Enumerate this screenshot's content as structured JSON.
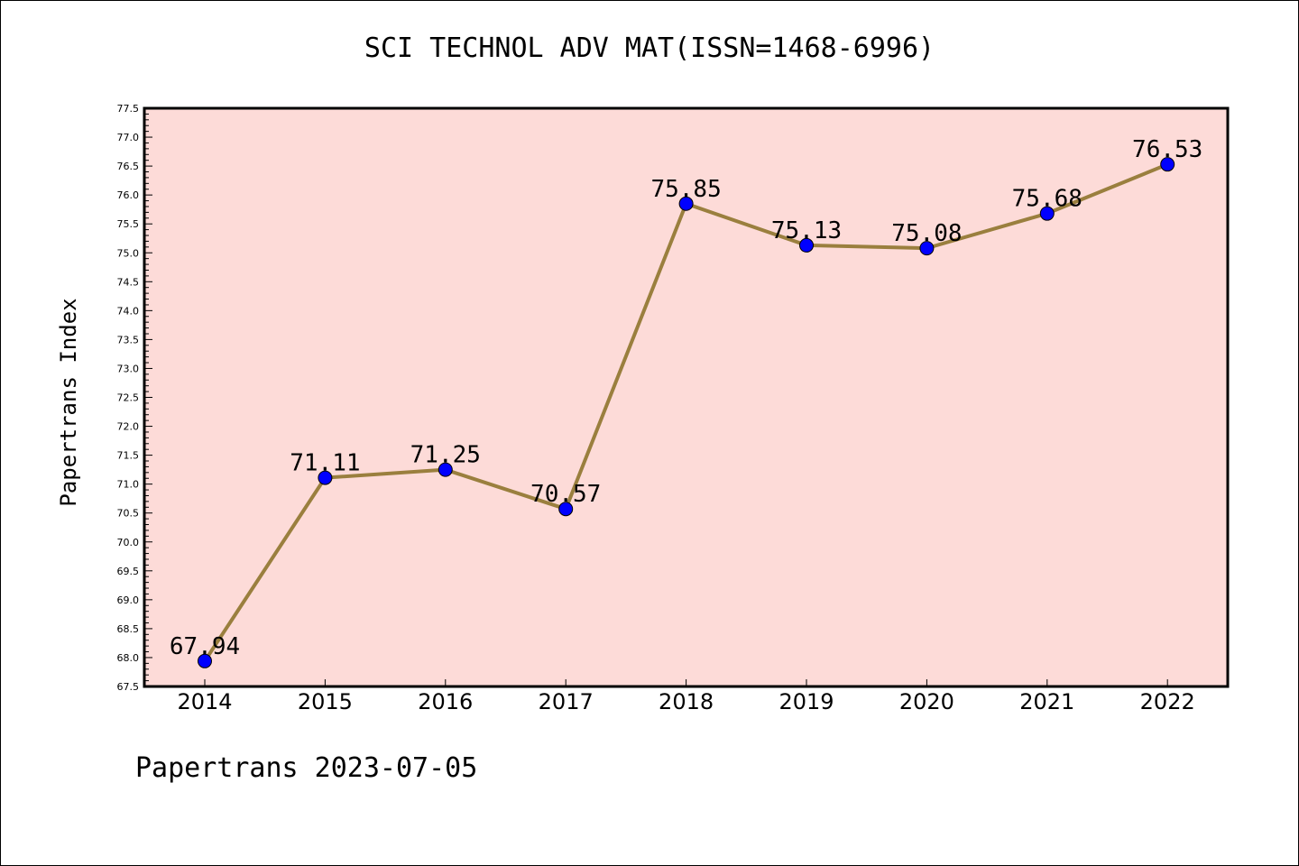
{
  "chart_data": {
    "type": "line",
    "title": "SCI TECHNOL ADV MAT(ISSN=1468-6996)",
    "ylabel": "Papertrans Index",
    "xlabel": "",
    "categories": [
      "2014",
      "2015",
      "2016",
      "2017",
      "2018",
      "2019",
      "2020",
      "2021",
      "2022"
    ],
    "values": [
      67.94,
      71.11,
      71.25,
      70.57,
      75.85,
      75.13,
      75.08,
      75.68,
      76.53
    ],
    "data_labels": [
      "67.94",
      "71.11",
      "71.25",
      "70.57",
      "75.85",
      "75.13",
      "75.08",
      "75.68",
      "76.53"
    ],
    "ylim": [
      67.5,
      77.5
    ],
    "yticks": [
      "67.5",
      "68.0",
      "68.5",
      "69.0",
      "69.5",
      "70.0",
      "70.5",
      "71.0",
      "71.5",
      "72.0",
      "72.5",
      "73.0",
      "73.5",
      "74.0",
      "74.5",
      "75.0",
      "75.5",
      "76.0",
      "76.5",
      "77.0",
      "77.5"
    ],
    "grid": false,
    "line_color": "#9a7f3e",
    "marker_color": "#0000ff",
    "plot_background": "#fddbd8"
  },
  "footer": "Papertrans 2023-07-05"
}
